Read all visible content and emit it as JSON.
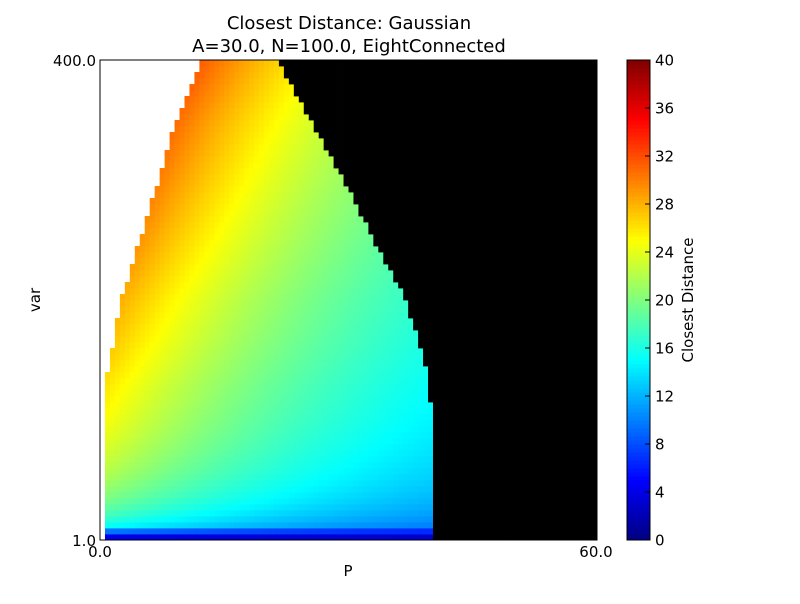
{
  "chart_data": {
    "type": "heatmap",
    "title": "Closest Distance: Gaussian",
    "subtitle": "A=30.0, N=100.0, EightConnected",
    "xlabel": "P",
    "ylabel": "var",
    "xlim": [
      0.0,
      60.0
    ],
    "ylim": [
      1.0,
      400.0
    ],
    "x_tick_labels": [
      "0.0",
      "60.0"
    ],
    "y_tick_labels": [
      "1.0",
      "400.0"
    ],
    "colorbar": {
      "label": "Closest Distance",
      "range": [
        0,
        40
      ],
      "ticks": [
        "0",
        "4",
        "8",
        "12",
        "16",
        "20",
        "24",
        "28",
        "32",
        "36",
        "40"
      ],
      "colormap": "jet"
    },
    "grid": false,
    "undefined_region_color": "#000000",
    "missing_region_color": "#ffffff",
    "boundaries": {
      "left_edge_P": [
        [
          0.6,
          1
        ],
        [
          0.6,
          130
        ],
        [
          1.2,
          150
        ],
        [
          2.5,
          200
        ],
        [
          4.8,
          250
        ],
        [
          7.0,
          300
        ],
        [
          9.2,
          350
        ],
        [
          12.2,
          400
        ]
      ],
      "right_edge_P": [
        [
          40.0,
          1
        ],
        [
          40.2,
          8
        ],
        [
          40.2,
          100
        ],
        [
          39.5,
          140
        ],
        [
          37.0,
          200
        ],
        [
          33.0,
          250
        ],
        [
          29.5,
          300
        ],
        [
          25.5,
          350
        ],
        [
          21.5,
          400
        ]
      ]
    },
    "values_sample": [
      {
        "var": 400,
        "P": 14,
        "distance": 38
      },
      {
        "var": 400,
        "P": 19,
        "distance": 25
      },
      {
        "var": 300,
        "P": 9,
        "distance": 38
      },
      {
        "var": 300,
        "P": 17,
        "distance": 26
      },
      {
        "var": 300,
        "P": 27,
        "distance": 22
      },
      {
        "var": 200,
        "P": 5,
        "distance": 36
      },
      {
        "var": 200,
        "P": 15,
        "distance": 25
      },
      {
        "var": 200,
        "P": 35,
        "distance": 20
      },
      {
        "var": 100,
        "P": 2,
        "distance": 32
      },
      {
        "var": 100,
        "P": 10,
        "distance": 22
      },
      {
        "var": 100,
        "P": 38,
        "distance": 16
      },
      {
        "var": 20,
        "P": 20,
        "distance": 12
      },
      {
        "var": 1,
        "P": 20,
        "distance": 4
      }
    ]
  }
}
